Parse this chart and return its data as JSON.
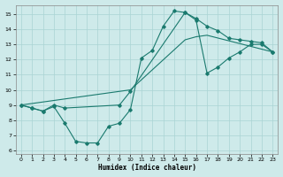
{
  "xlabel": "Humidex (Indice chaleur)",
  "bg_color": "#ceeaea",
  "grid_color": "#aad4d4",
  "line_color": "#1a7a6e",
  "xlim": [
    -0.5,
    23.5
  ],
  "ylim": [
    5.8,
    15.6
  ],
  "xticks": [
    0,
    1,
    2,
    3,
    4,
    5,
    6,
    7,
    8,
    9,
    10,
    11,
    12,
    13,
    14,
    15,
    16,
    17,
    18,
    19,
    20,
    21,
    22,
    23
  ],
  "yticks": [
    6,
    7,
    8,
    9,
    10,
    11,
    12,
    13,
    14,
    15
  ],
  "line1_x": [
    0,
    1,
    2,
    3,
    4,
    5,
    6,
    7,
    8,
    9,
    10,
    11,
    12,
    13,
    14,
    15,
    16,
    17,
    18,
    19,
    20,
    21,
    22,
    23
  ],
  "line1_y": [
    9.0,
    8.8,
    8.6,
    8.9,
    7.8,
    6.6,
    6.5,
    6.5,
    7.6,
    7.8,
    8.7,
    12.1,
    12.6,
    14.2,
    15.2,
    15.1,
    14.7,
    14.2,
    13.9,
    13.4,
    13.3,
    13.2,
    13.1,
    12.5
  ],
  "line2_x": [
    0,
    1,
    2,
    3,
    4,
    9,
    10,
    15,
    16,
    17,
    18,
    19,
    20,
    21,
    22,
    23
  ],
  "line2_y": [
    9.0,
    8.8,
    8.6,
    9.0,
    8.8,
    9.0,
    9.9,
    15.1,
    14.6,
    11.1,
    11.5,
    12.1,
    12.5,
    13.0,
    13.0,
    12.5
  ],
  "line3_x": [
    0,
    10,
    15,
    16,
    17,
    23
  ],
  "line3_y": [
    9.0,
    10.0,
    13.3,
    13.5,
    13.6,
    12.5
  ]
}
